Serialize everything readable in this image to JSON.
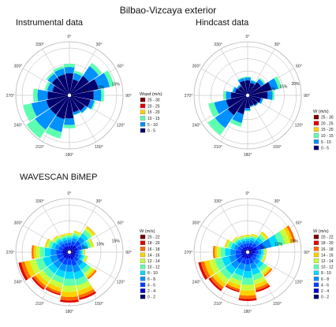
{
  "figure": {
    "title": "Bilbao-Vizcaya exterior",
    "subtitle": "WAVESCAN BiMEP"
  },
  "colors": {
    "scale10": [
      "#00006e",
      "#0000cd",
      "#0040ff",
      "#0090ff",
      "#00d8ff",
      "#5cffb0",
      "#c8ff40",
      "#ffd000",
      "#ff6a00",
      "#e00000",
      "#7a0000"
    ],
    "grid": "#b4b4b4"
  },
  "chart_data": [
    {
      "type": "wind-rose",
      "title": "Instrumental data",
      "legend_title": "Wspd (m/s)",
      "legend": [
        "25 - 30",
        "20 - 25",
        "15 - 20",
        "10 - 15",
        "5 - 10",
        "0 - 5"
      ],
      "legend_colors": [
        "#7a0000",
        "#e00000",
        "#ffd000",
        "#5cffb0",
        "#0090ff",
        "#00006e"
      ],
      "direction_labels": [
        "0°",
        "30°",
        "60°",
        "90°",
        "120°",
        "150°",
        "180°",
        "210°",
        "240°",
        "270°",
        "300°",
        "330°"
      ],
      "ring_labels": [
        "5%",
        "10%",
        "15%"
      ],
      "ring_max": 17,
      "sectors": 16,
      "frequency_pct": [
        10,
        8,
        12.5,
        14.5,
        11,
        8.5,
        7,
        6.5,
        10.5,
        14,
        16.5,
        15,
        11.5,
        8,
        9,
        9.5
      ],
      "class_shares": [
        [
          0.7,
          0.2,
          0.1
        ],
        [
          0.65,
          0.25,
          0.1
        ],
        [
          0.6,
          0.3,
          0.1
        ],
        [
          0.65,
          0.25,
          0.1
        ],
        [
          0.7,
          0.22,
          0.08
        ],
        [
          0.8,
          0.15,
          0.05
        ],
        [
          0.85,
          0.12,
          0.03
        ],
        [
          0.85,
          0.12,
          0.03
        ],
        [
          0.7,
          0.2,
          0.1
        ],
        [
          0.55,
          0.3,
          0.15
        ],
        [
          0.45,
          0.35,
          0.2
        ],
        [
          0.5,
          0.32,
          0.18
        ],
        [
          0.6,
          0.28,
          0.12
        ],
        [
          0.7,
          0.2,
          0.1
        ],
        [
          0.75,
          0.18,
          0.07
        ],
        [
          0.72,
          0.2,
          0.08
        ]
      ]
    },
    {
      "type": "wind-rose",
      "title": "Hindcast data",
      "legend_title": "W (m/s)",
      "legend": [
        "25 - 30",
        "20 - 25",
        "15 - 20",
        "10 - 15",
        "5 - 10",
        "0 - 5"
      ],
      "legend_colors": [
        "#7a0000",
        "#e00000",
        "#ffd000",
        "#5cffb0",
        "#0090ff",
        "#00006e"
      ],
      "direction_labels": [
        "0°",
        "30°",
        "60°",
        "90°",
        "120°",
        "150°",
        "180°",
        "210°",
        "240°",
        "270°",
        "300°",
        "330°"
      ],
      "ring_labels": [
        "5%",
        "10%",
        "15%",
        "20%"
      ],
      "ring_max": 20,
      "sectors": 16,
      "frequency_pct": [
        7,
        6,
        8,
        13,
        10,
        6,
        5,
        4.5,
        6,
        12,
        18,
        15,
        9,
        6,
        5,
        7
      ],
      "class_shares": [
        [
          0.8,
          0.15,
          0.05
        ],
        [
          0.8,
          0.15,
          0.05
        ],
        [
          0.75,
          0.18,
          0.07
        ],
        [
          0.7,
          0.2,
          0.1
        ],
        [
          0.75,
          0.18,
          0.07
        ],
        [
          0.85,
          0.12,
          0.03
        ],
        [
          0.9,
          0.08,
          0.02
        ],
        [
          0.9,
          0.08,
          0.02
        ],
        [
          0.8,
          0.15,
          0.05
        ],
        [
          0.6,
          0.28,
          0.12
        ],
        [
          0.5,
          0.32,
          0.18
        ],
        [
          0.55,
          0.3,
          0.15
        ],
        [
          0.7,
          0.2,
          0.1
        ],
        [
          0.8,
          0.15,
          0.05
        ],
        [
          0.85,
          0.12,
          0.03
        ],
        [
          0.8,
          0.15,
          0.05
        ]
      ]
    },
    {
      "type": "wind-rose",
      "title": "",
      "legend_title": "W (m/s)",
      "legend": [
        "20 - 22",
        "18 - 20",
        "16 - 18",
        "14 - 16",
        "12 - 14",
        "10 - 12",
        "8 - 10",
        "6 - 8",
        "4 - 6",
        "2 - 4",
        "0 - 2"
      ],
      "legend_colors": [
        "#7a0000",
        "#e00000",
        "#ff6a00",
        "#ffd000",
        "#c8ff40",
        "#5cffb0",
        "#00d8ff",
        "#0090ff",
        "#0040ff",
        "#0000cd",
        "#00006e"
      ],
      "direction_labels": [
        "0°",
        "30°",
        "60°",
        "90°",
        "120°",
        "150°",
        "180°",
        "210°",
        "240°",
        "270°",
        "300°",
        "330°"
      ],
      "ring_labels": [
        "5%",
        "10%",
        "15%"
      ],
      "ring_max": 17,
      "sectors": 16,
      "frequency_pct": [
        6,
        7,
        10,
        8,
        5,
        6,
        10.5,
        15.5,
        16,
        14,
        14.5,
        16.5,
        12,
        8,
        6.5,
        6
      ],
      "class_shares": [
        [
          0.15,
          0.18,
          0.18,
          0.15,
          0.12,
          0.1,
          0.07,
          0.05
        ],
        [
          0.15,
          0.18,
          0.18,
          0.15,
          0.12,
          0.1,
          0.07,
          0.05
        ],
        [
          0.12,
          0.15,
          0.17,
          0.15,
          0.14,
          0.12,
          0.08,
          0.07
        ],
        [
          0.15,
          0.18,
          0.18,
          0.15,
          0.12,
          0.1,
          0.07,
          0.05
        ],
        [
          0.2,
          0.2,
          0.18,
          0.14,
          0.1,
          0.08,
          0.06,
          0.04
        ],
        [
          0.15,
          0.18,
          0.18,
          0.15,
          0.12,
          0.1,
          0.07,
          0.05
        ],
        [
          0.08,
          0.12,
          0.15,
          0.15,
          0.15,
          0.13,
          0.1,
          0.07,
          0.05
        ],
        [
          0.06,
          0.1,
          0.13,
          0.14,
          0.14,
          0.13,
          0.11,
          0.09,
          0.06,
          0.04
        ],
        [
          0.05,
          0.08,
          0.12,
          0.14,
          0.14,
          0.14,
          0.12,
          0.1,
          0.07,
          0.04
        ],
        [
          0.06,
          0.1,
          0.14,
          0.15,
          0.14,
          0.13,
          0.11,
          0.09,
          0.05,
          0.03
        ],
        [
          0.06,
          0.1,
          0.13,
          0.14,
          0.14,
          0.13,
          0.11,
          0.09,
          0.06,
          0.04
        ],
        [
          0.05,
          0.08,
          0.12,
          0.13,
          0.14,
          0.14,
          0.12,
          0.1,
          0.07,
          0.05
        ],
        [
          0.08,
          0.12,
          0.15,
          0.15,
          0.15,
          0.13,
          0.1,
          0.07,
          0.05
        ],
        [
          0.12,
          0.15,
          0.17,
          0.15,
          0.14,
          0.12,
          0.08,
          0.07
        ],
        [
          0.15,
          0.18,
          0.18,
          0.15,
          0.12,
          0.1,
          0.07,
          0.05
        ],
        [
          0.15,
          0.18,
          0.18,
          0.15,
          0.12,
          0.1,
          0.07,
          0.05
        ]
      ]
    },
    {
      "type": "wind-rose",
      "title": "",
      "legend_title": "W (m/s)",
      "legend": [
        "20 - 22",
        "18 - 20",
        "16 - 18",
        "14 - 16",
        "12 - 14",
        "10 - 12",
        "8 - 10",
        "6 - 8",
        "4 - 6",
        "2 - 4",
        "0 - 2"
      ],
      "legend_colors": [
        "#7a0000",
        "#e00000",
        "#ff6a00",
        "#ffd000",
        "#c8ff40",
        "#5cffb0",
        "#00d8ff",
        "#0090ff",
        "#0040ff",
        "#0000cd",
        "#00006e"
      ],
      "direction_labels": [
        "0°",
        "30°",
        "60°",
        "90°",
        "120°",
        "150°",
        "180°",
        "210°",
        "240°",
        "270°",
        "300°",
        "330°"
      ],
      "ring_labels": [
        "5%",
        "10%",
        "15%"
      ],
      "ring_max": 17,
      "sectors": 16,
      "frequency_pct": [
        5.5,
        6,
        8,
        15.5,
        6,
        6,
        9.5,
        13,
        15.5,
        13,
        15,
        16,
        11,
        7.5,
        6,
        5.5
      ],
      "class_shares": [
        [
          0.15,
          0.18,
          0.18,
          0.15,
          0.12,
          0.1,
          0.07,
          0.05
        ],
        [
          0.15,
          0.18,
          0.18,
          0.15,
          0.12,
          0.1,
          0.07,
          0.05
        ],
        [
          0.12,
          0.15,
          0.17,
          0.15,
          0.14,
          0.12,
          0.08,
          0.07
        ],
        [
          0.08,
          0.12,
          0.15,
          0.15,
          0.15,
          0.13,
          0.1,
          0.07,
          0.05
        ],
        [
          0.2,
          0.2,
          0.18,
          0.14,
          0.1,
          0.08,
          0.06,
          0.04
        ],
        [
          0.15,
          0.18,
          0.18,
          0.15,
          0.12,
          0.1,
          0.07,
          0.05
        ],
        [
          0.08,
          0.12,
          0.15,
          0.15,
          0.15,
          0.13,
          0.1,
          0.07,
          0.05
        ],
        [
          0.06,
          0.1,
          0.13,
          0.14,
          0.14,
          0.13,
          0.11,
          0.09,
          0.06,
          0.04
        ],
        [
          0.05,
          0.08,
          0.12,
          0.14,
          0.14,
          0.14,
          0.12,
          0.1,
          0.07,
          0.04
        ],
        [
          0.06,
          0.1,
          0.14,
          0.15,
          0.14,
          0.13,
          0.11,
          0.09,
          0.05,
          0.03
        ],
        [
          0.06,
          0.1,
          0.13,
          0.14,
          0.14,
          0.13,
          0.11,
          0.09,
          0.06,
          0.04
        ],
        [
          0.05,
          0.08,
          0.12,
          0.13,
          0.14,
          0.14,
          0.12,
          0.1,
          0.07,
          0.05
        ],
        [
          0.08,
          0.12,
          0.15,
          0.15,
          0.15,
          0.13,
          0.1,
          0.07,
          0.05
        ],
        [
          0.12,
          0.15,
          0.17,
          0.15,
          0.14,
          0.12,
          0.08,
          0.07
        ],
        [
          0.15,
          0.18,
          0.18,
          0.15,
          0.12,
          0.1,
          0.07,
          0.05
        ],
        [
          0.15,
          0.18,
          0.18,
          0.15,
          0.12,
          0.1,
          0.07,
          0.05
        ]
      ]
    }
  ]
}
